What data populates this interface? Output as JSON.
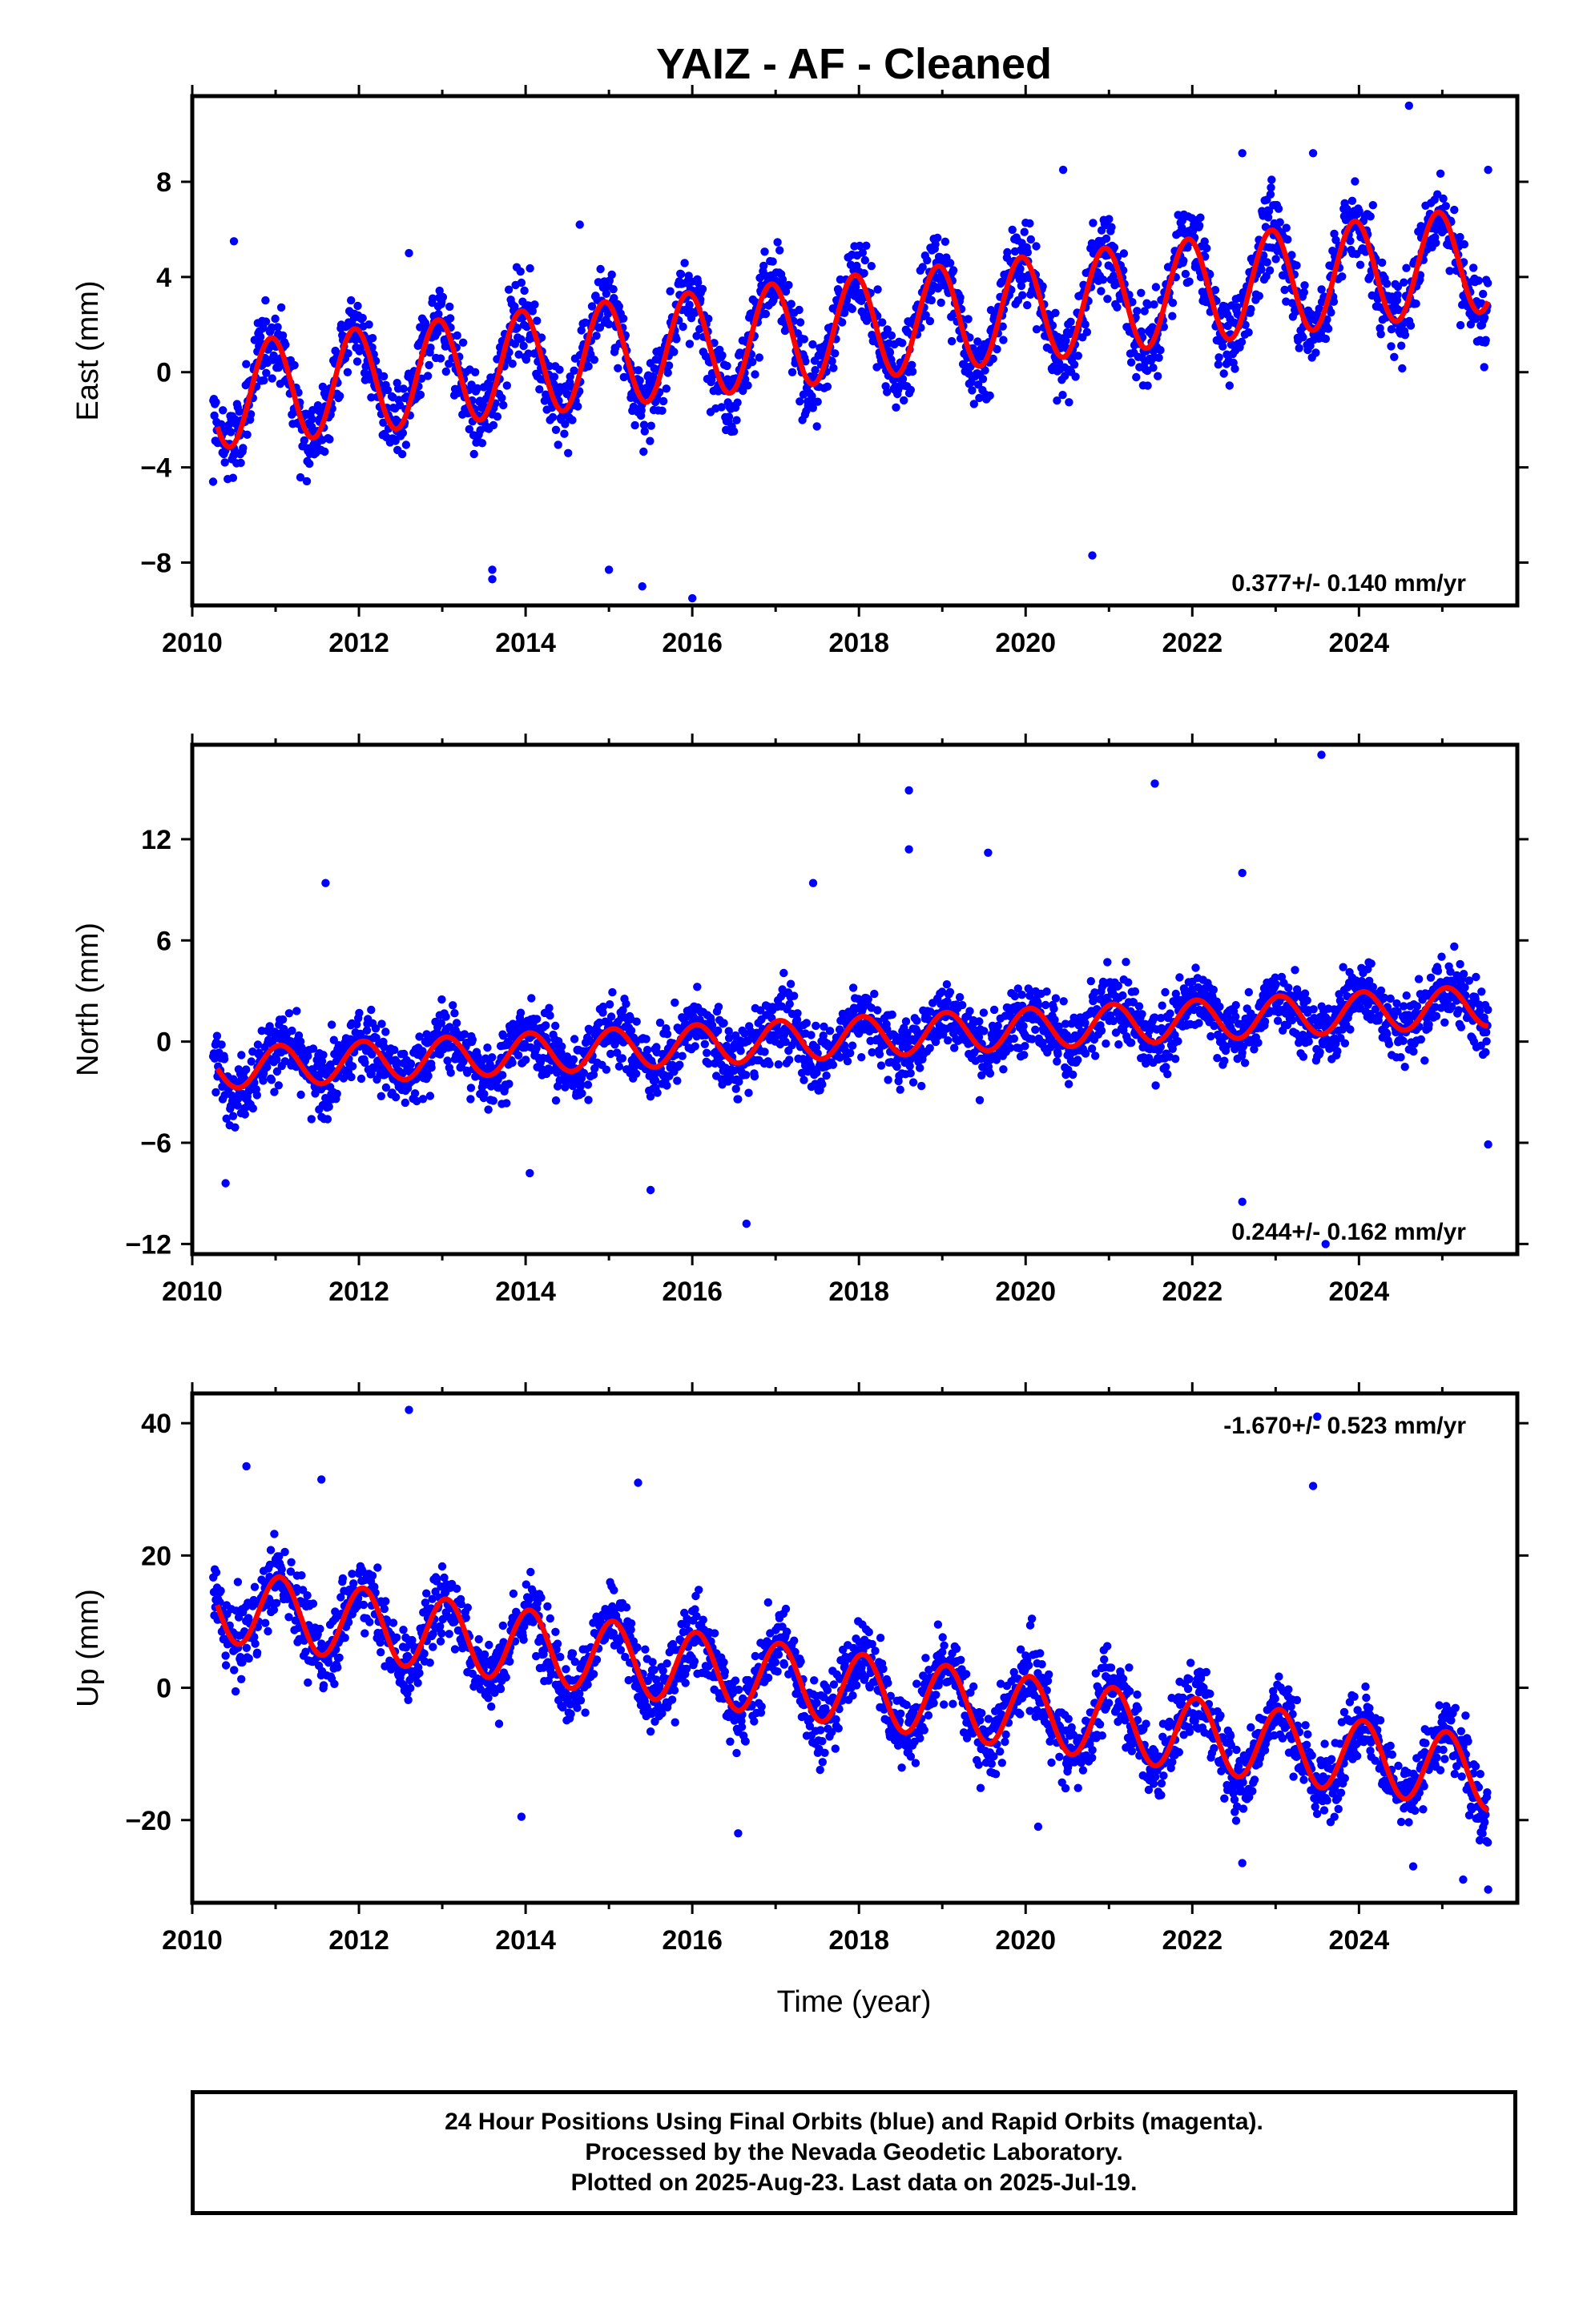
{
  "title": "YAIZ  - AF - Cleaned",
  "colors": {
    "final_orbits": "#0000ff",
    "model": "#ff0000",
    "frame": "#000000"
  },
  "xlabel": "Time (year)",
  "x_ticks": [
    "2010",
    "2012",
    "2014",
    "2016",
    "2018",
    "2020",
    "2022",
    "2024"
  ],
  "chart_data": [
    {
      "type": "scatter",
      "component": "east",
      "ylabel": "East (mm)",
      "xlim": [
        2010,
        2025.9
      ],
      "ylim": [
        -9.8,
        11.6
      ],
      "y_ticks": [
        8,
        4,
        0,
        -4,
        -8
      ],
      "y_tick_labels": [
        "8",
        "4",
        "0",
        "−4",
        "−8"
      ],
      "rate_label": "0.377+/- 0.140 mm/yr",
      "rate_position": "bottom-right",
      "series": [
        {
          "kind": "points",
          "color": "#0000ff",
          "x_range": [
            2010.25,
            2025.55
          ],
          "base": -1.0,
          "trend_mm_per_yr": 0.377,
          "annual_amplitude": 2.2,
          "phase_year": 0.45,
          "noise": 1.5,
          "count": 2400,
          "outliers": [
            [
              2024.6,
              11.2
            ],
            [
              2016.0,
              -9.5
            ],
            [
              2015.4,
              -9.0
            ],
            [
              2013.6,
              -8.3
            ],
            [
              2013.6,
              -8.7
            ],
            [
              2025.55,
              8.5
            ],
            [
              2020.45,
              8.5
            ],
            [
              2022.6,
              9.2
            ],
            [
              2023.45,
              9.2
            ],
            [
              2014.65,
              6.2
            ],
            [
              2012.6,
              5.0
            ],
            [
              2010.5,
              5.5
            ],
            [
              2020.8,
              -7.7
            ],
            [
              2015.0,
              -8.3
            ],
            [
              2010.25,
              -4.6
            ]
          ]
        },
        {
          "kind": "line",
          "color": "#ff0000",
          "x_range": [
            2010.3,
            2025.55
          ],
          "base": -1.0,
          "trend_mm_per_yr": 0.377,
          "annual_amplitude": 2.2,
          "phase_year": 0.45
        }
      ]
    },
    {
      "type": "scatter",
      "component": "north",
      "ylabel": "North (mm)",
      "xlim": [
        2010,
        2025.9
      ],
      "ylim": [
        -12.6,
        17.6
      ],
      "y_ticks": [
        12,
        6,
        0,
        -6,
        -12
      ],
      "y_tick_labels": [
        "12",
        "6",
        "0",
        "−6",
        "−12"
      ],
      "rate_label": "0.244+/- 0.162 mm/yr",
      "rate_position": "bottom-right",
      "series": [
        {
          "kind": "points",
          "color": "#0000ff",
          "x_range": [
            2010.25,
            2025.55
          ],
          "base": -1.6,
          "trend_mm_per_yr": 0.244,
          "annual_amplitude": 1.2,
          "phase_year": 0.55,
          "noise": 1.8,
          "count": 2400,
          "outliers": [
            [
              2023.55,
              17.0
            ],
            [
              2018.6,
              14.9
            ],
            [
              2021.55,
              15.3
            ],
            [
              2018.6,
              11.4
            ],
            [
              2019.55,
              11.2
            ],
            [
              2011.6,
              9.4
            ],
            [
              2017.45,
              9.4
            ],
            [
              2022.6,
              10.0
            ],
            [
              2016.65,
              -10.8
            ],
            [
              2015.5,
              -8.8
            ],
            [
              2010.4,
              -8.4
            ],
            [
              2023.6,
              -12.0
            ],
            [
              2022.6,
              -9.5
            ],
            [
              2025.55,
              -6.1
            ],
            [
              2014.05,
              -7.8
            ]
          ]
        },
        {
          "kind": "line",
          "color": "#ff0000",
          "x_range": [
            2010.3,
            2025.55
          ],
          "base": -1.6,
          "trend_mm_per_yr": 0.244,
          "annual_amplitude": 1.2,
          "phase_year": 0.55
        }
      ]
    },
    {
      "type": "scatter",
      "component": "up",
      "ylabel": "Up (mm)",
      "xlim": [
        2010,
        2025.9
      ],
      "ylim": [
        -32.5,
        44.5
      ],
      "y_ticks": [
        40,
        20,
        0,
        -20
      ],
      "y_tick_labels": [
        "40",
        "20",
        "0",
        "−20"
      ],
      "rate_label": "-1.670+/- 0.523 mm/yr",
      "rate_position": "top-right",
      "series": [
        {
          "kind": "points",
          "color": "#0000ff",
          "x_range": [
            2010.25,
            2025.55
          ],
          "base": 12.5,
          "trend_mm_per_yr": -1.67,
          "annual_amplitude": 5.5,
          "phase_year": 0.55,
          "noise": 5.0,
          "count": 2400,
          "outliers": [
            [
              2012.6,
              42.0
            ],
            [
              2023.5,
              41.0
            ],
            [
              2010.65,
              33.5
            ],
            [
              2015.35,
              31.0
            ],
            [
              2023.45,
              30.5
            ],
            [
              2011.55,
              31.5
            ],
            [
              2016.55,
              -22.0
            ],
            [
              2020.15,
              -21.0
            ],
            [
              2025.25,
              -29.0
            ],
            [
              2025.55,
              -30.5
            ],
            [
              2013.95,
              -19.5
            ],
            [
              2022.6,
              -26.5
            ],
            [
              2024.65,
              -27.0
            ]
          ]
        },
        {
          "kind": "line",
          "color": "#ff0000",
          "x_range": [
            2010.3,
            2025.55
          ],
          "base": 12.5,
          "trend_mm_per_yr": -1.67,
          "annual_amplitude": 5.5,
          "phase_year": 0.55
        }
      ]
    }
  ],
  "footer": {
    "line1": "24 Hour Positions Using Final Orbits (blue) and Rapid Orbits (magenta).",
    "line2": "Processed by the Nevada Geodetic Laboratory.",
    "line3": "Plotted on 2025-Aug-23. Last data on 2025-Jul-19."
  }
}
